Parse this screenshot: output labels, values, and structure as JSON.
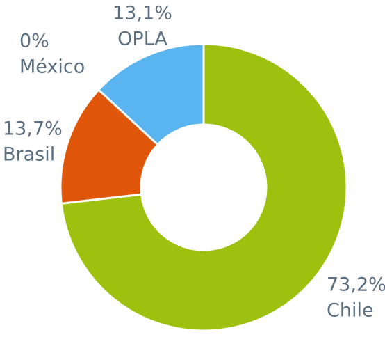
{
  "chart_data": {
    "type": "pie",
    "categories": [
      "Chile",
      "Brasil",
      "México",
      "OPLA"
    ],
    "values": [
      73.2,
      13.7,
      0,
      13.1
    ],
    "value_labels": [
      "73,2%",
      "13,7%",
      "0%",
      "13,1%"
    ],
    "colors": [
      "#9dc10e",
      "#e0560a",
      "#7f7f7f",
      "#5ab4ef"
    ],
    "donut": true
  }
}
